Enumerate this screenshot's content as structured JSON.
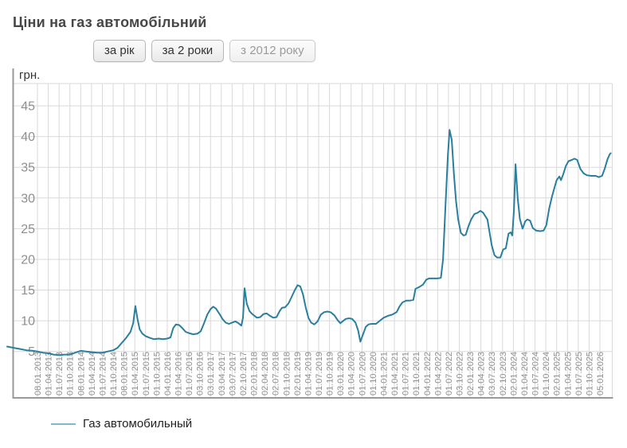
{
  "page": {
    "title": "Ціни на газ автомобільний"
  },
  "controls": {
    "buttons": [
      {
        "id": "period-year",
        "label": "за рік",
        "state": "enabled"
      },
      {
        "id": "period-2y",
        "label": "за 2 роки",
        "state": "enabled"
      },
      {
        "id": "period-2012",
        "label": "з 2012 року",
        "state": "selected"
      }
    ]
  },
  "colors": {
    "line": "#2a7f9e",
    "legend_swatch": "#82b6ca",
    "grid": "#d9d9d9",
    "axis": "#999999",
    "tick_text": "#8f8f8f",
    "unit_text": "#333333"
  },
  "chart_data": {
    "type": "line",
    "title": "Ціни на газ автомобільний",
    "ylabel": "грн.",
    "xlabel": "",
    "grid": true,
    "legend_position": "bottom-left",
    "y_ticks": [
      5,
      10,
      15,
      20,
      25,
      30,
      35,
      40,
      45
    ],
    "ylim": [
      3,
      48
    ],
    "x_labels": [
      "08.01.2013",
      "01.04.2013",
      "01.07.2013",
      "01.10.2013",
      "08.01.2014",
      "01.04.2014",
      "01.07.2014",
      "01.10.2014",
      "08.01.2015",
      "01.04.2015",
      "01.07.2015",
      "01.10.2015",
      "04.01.2016",
      "01.04.2016",
      "01.07.2016",
      "03.10.2016",
      "03.01.2017",
      "03.04.2017",
      "03.07.2017",
      "02.10.2017",
      "02.01.2018",
      "02.04.2018",
      "02.07.2018",
      "01.10.2018",
      "02.01.2019",
      "01.04.2019",
      "01.07.2019",
      "01.10.2019",
      "03.01.2020",
      "01.04.2020",
      "01.07.2020",
      "01.10.2020",
      "04.01.2021",
      "01.04.2021",
      "01.07.2021",
      "01.10.2021",
      "04.01.2022",
      "01.04.2022",
      "01.07.2022",
      "03.10.2022",
      "02.01.2023",
      "04.04.2023",
      "03.07.2023",
      "02.10.2023",
      "02.01.2024",
      "01.04.2024",
      "01.07.2024",
      "01.10.2024",
      "02.01.2025",
      "01.04.2025",
      "01.07.2025",
      "01.10.2025",
      "05.01.2026"
    ],
    "series": [
      {
        "name": "Газ автомобильный",
        "color": "#2a7f9e",
        "points": [
          [
            -2.8,
            5.8
          ],
          [
            -2.2,
            5.6
          ],
          [
            -1.6,
            5.4
          ],
          [
            -1.0,
            5.2
          ],
          [
            -0.4,
            5.1
          ],
          [
            0,
            5.0
          ],
          [
            0.5,
            4.8
          ],
          [
            1.0,
            4.7
          ],
          [
            1.5,
            4.5
          ],
          [
            2.0,
            4.4
          ],
          [
            2.5,
            4.5
          ],
          [
            3.0,
            4.5
          ],
          [
            3.5,
            4.8
          ],
          [
            4.0,
            5.1
          ],
          [
            4.5,
            5.0
          ],
          [
            5.0,
            4.9
          ],
          [
            5.5,
            4.8
          ],
          [
            6.0,
            4.8
          ],
          [
            6.5,
            5.0
          ],
          [
            7.0,
            5.2
          ],
          [
            7.4,
            5.6
          ],
          [
            7.8,
            6.4
          ],
          [
            8.2,
            7.2
          ],
          [
            8.6,
            8.2
          ],
          [
            8.85,
            9.6
          ],
          [
            9.05,
            12.4
          ],
          [
            9.25,
            10.3
          ],
          [
            9.45,
            8.6
          ],
          [
            9.7,
            7.9
          ],
          [
            10.0,
            7.5
          ],
          [
            10.4,
            7.2
          ],
          [
            10.8,
            7.0
          ],
          [
            11.2,
            7.1
          ],
          [
            11.6,
            7.0
          ],
          [
            12.0,
            7.1
          ],
          [
            12.3,
            7.3
          ],
          [
            12.55,
            8.8
          ],
          [
            12.8,
            9.4
          ],
          [
            13.1,
            9.3
          ],
          [
            13.4,
            8.8
          ],
          [
            13.7,
            8.2
          ],
          [
            14.0,
            8.0
          ],
          [
            14.4,
            7.8
          ],
          [
            14.8,
            7.9
          ],
          [
            15.1,
            8.3
          ],
          [
            15.4,
            9.6
          ],
          [
            15.7,
            11.0
          ],
          [
            16.0,
            11.9
          ],
          [
            16.25,
            12.3
          ],
          [
            16.5,
            12.0
          ],
          [
            16.8,
            11.2
          ],
          [
            17.1,
            10.3
          ],
          [
            17.4,
            9.7
          ],
          [
            17.7,
            9.5
          ],
          [
            18.0,
            9.7
          ],
          [
            18.3,
            9.9
          ],
          [
            18.6,
            9.6
          ],
          [
            18.85,
            9.2
          ],
          [
            19.0,
            10.5
          ],
          [
            19.15,
            15.3
          ],
          [
            19.35,
            12.8
          ],
          [
            19.6,
            11.6
          ],
          [
            19.8,
            11.2
          ],
          [
            20.0,
            10.9
          ],
          [
            20.3,
            10.5
          ],
          [
            20.6,
            10.6
          ],
          [
            20.9,
            11.1
          ],
          [
            21.2,
            11.2
          ],
          [
            21.5,
            10.8
          ],
          [
            21.8,
            10.5
          ],
          [
            22.1,
            10.6
          ],
          [
            22.4,
            11.6
          ],
          [
            22.6,
            12.1
          ],
          [
            22.9,
            12.2
          ],
          [
            23.2,
            12.8
          ],
          [
            23.5,
            13.9
          ],
          [
            23.8,
            15.0
          ],
          [
            24.05,
            15.8
          ],
          [
            24.3,
            15.6
          ],
          [
            24.55,
            14.3
          ],
          [
            24.8,
            12.2
          ],
          [
            25.05,
            10.5
          ],
          [
            25.3,
            9.7
          ],
          [
            25.6,
            9.4
          ],
          [
            25.9,
            9.9
          ],
          [
            26.2,
            11.0
          ],
          [
            26.5,
            11.4
          ],
          [
            26.8,
            11.5
          ],
          [
            27.1,
            11.4
          ],
          [
            27.45,
            10.9
          ],
          [
            27.75,
            10.1
          ],
          [
            28.0,
            9.6
          ],
          [
            28.2,
            9.9
          ],
          [
            28.5,
            10.3
          ],
          [
            28.8,
            10.4
          ],
          [
            29.1,
            10.3
          ],
          [
            29.4,
            9.7
          ],
          [
            29.65,
            8.4
          ],
          [
            29.85,
            6.6
          ],
          [
            30.1,
            7.8
          ],
          [
            30.35,
            9.0
          ],
          [
            30.6,
            9.4
          ],
          [
            30.9,
            9.5
          ],
          [
            31.3,
            9.5
          ],
          [
            31.65,
            10.0
          ],
          [
            32.0,
            10.5
          ],
          [
            32.4,
            10.8
          ],
          [
            32.8,
            11.0
          ],
          [
            33.2,
            11.4
          ],
          [
            33.5,
            12.4
          ],
          [
            33.75,
            13.0
          ],
          [
            34.1,
            13.3
          ],
          [
            34.45,
            13.3
          ],
          [
            34.75,
            13.4
          ],
          [
            34.95,
            15.2
          ],
          [
            35.3,
            15.5
          ],
          [
            35.65,
            15.9
          ],
          [
            35.95,
            16.7
          ],
          [
            36.2,
            16.9
          ],
          [
            36.6,
            16.9
          ],
          [
            37.0,
            16.9
          ],
          [
            37.3,
            17.0
          ],
          [
            37.5,
            20.0
          ],
          [
            37.7,
            28.0
          ],
          [
            37.95,
            37.0
          ],
          [
            38.1,
            41.1
          ],
          [
            38.3,
            39.5
          ],
          [
            38.5,
            34.0
          ],
          [
            38.7,
            29.5
          ],
          [
            38.9,
            26.5
          ],
          [
            39.15,
            24.3
          ],
          [
            39.4,
            23.9
          ],
          [
            39.6,
            24.0
          ],
          [
            39.85,
            25.4
          ],
          [
            40.1,
            26.5
          ],
          [
            40.4,
            27.4
          ],
          [
            40.7,
            27.6
          ],
          [
            40.95,
            27.9
          ],
          [
            41.2,
            27.6
          ],
          [
            41.6,
            26.5
          ],
          [
            41.8,
            24.4
          ],
          [
            42.0,
            22.3
          ],
          [
            42.25,
            20.7
          ],
          [
            42.5,
            20.3
          ],
          [
            42.8,
            20.3
          ],
          [
            43.05,
            21.6
          ],
          [
            43.3,
            21.8
          ],
          [
            43.55,
            24.2
          ],
          [
            43.75,
            24.4
          ],
          [
            43.9,
            23.9
          ],
          [
            44.05,
            28.0
          ],
          [
            44.2,
            35.5
          ],
          [
            44.4,
            30.0
          ],
          [
            44.6,
            26.6
          ],
          [
            44.85,
            25.0
          ],
          [
            45.1,
            26.2
          ],
          [
            45.3,
            26.5
          ],
          [
            45.55,
            26.3
          ],
          [
            45.8,
            25.1
          ],
          [
            46.1,
            24.7
          ],
          [
            46.5,
            24.6
          ],
          [
            46.8,
            24.7
          ],
          [
            47.05,
            25.6
          ],
          [
            47.3,
            28.2
          ],
          [
            47.55,
            30.1
          ],
          [
            47.8,
            31.7
          ],
          [
            48.0,
            32.9
          ],
          [
            48.25,
            33.5
          ],
          [
            48.4,
            32.9
          ],
          [
            48.6,
            33.8
          ],
          [
            48.85,
            35.2
          ],
          [
            49.1,
            36.0
          ],
          [
            49.4,
            36.2
          ],
          [
            49.65,
            36.4
          ],
          [
            49.9,
            36.2
          ],
          [
            50.2,
            34.7
          ],
          [
            50.5,
            34.0
          ],
          [
            50.8,
            33.7
          ],
          [
            51.2,
            33.6
          ],
          [
            51.6,
            33.6
          ],
          [
            51.9,
            33.4
          ],
          [
            52.2,
            33.6
          ],
          [
            52.45,
            34.8
          ],
          [
            52.7,
            36.3
          ],
          [
            52.9,
            37.1
          ],
          [
            53.0,
            37.3
          ]
        ]
      }
    ]
  },
  "legend": {
    "items": [
      {
        "label": "Газ автомобильный",
        "color": "#82b6ca"
      }
    ]
  }
}
